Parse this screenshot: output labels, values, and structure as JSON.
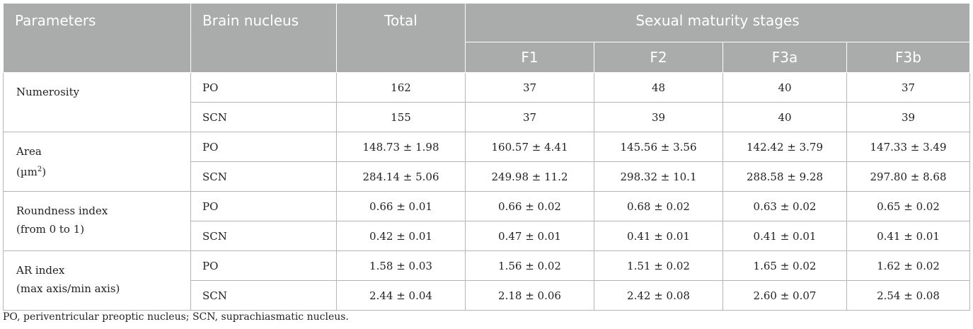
{
  "header": {
    "parameters": "Parameters",
    "brain_nucleus": "Brain nucleus",
    "total": "Total",
    "group": "Sexual maturity stages",
    "stages": [
      "F1",
      "F2",
      "F3a",
      "F3b"
    ]
  },
  "rows": [
    {
      "param_line1": "Numerosity",
      "param_line2": "",
      "sub": [
        {
          "nucleus": "PO",
          "values": [
            "162",
            "37",
            "48",
            "40",
            "37"
          ]
        },
        {
          "nucleus": "SCN",
          "values": [
            "155",
            "37",
            "39",
            "40",
            "39"
          ]
        }
      ]
    },
    {
      "param_line1": "Area",
      "param_line2": "(µm",
      "param_sup": "2",
      "param_line2_end": ")",
      "sub": [
        {
          "nucleus": "PO",
          "values": [
            "148.73 ± 1.98",
            "160.57 ± 4.41",
            "145.56 ± 3.56",
            "142.42 ± 3.79",
            "147.33 ± 3.49"
          ]
        },
        {
          "nucleus": "SCN",
          "values": [
            "284.14 ± 5.06",
            "249.98 ± 11.2",
            "298.32 ± 10.1",
            "288.58 ± 9.28",
            "297.80 ± 8.68"
          ]
        }
      ]
    },
    {
      "param_line1": "Roundness index",
      "param_line2": "(from 0 to 1)",
      "sub": [
        {
          "nucleus": "PO",
          "values": [
            "0.66 ± 0.01",
            "0.66 ± 0.02",
            "0.68 ± 0.02",
            "0.63 ± 0.02",
            "0.65 ± 0.02"
          ]
        },
        {
          "nucleus": "SCN",
          "values": [
            "0.42 ± 0.01",
            "0.47 ± 0.01",
            "0.41 ± 0.01",
            "0.41 ± 0.01",
            "0.41 ± 0.01"
          ]
        }
      ]
    },
    {
      "param_line1": "AR index",
      "param_line2": "(max axis/min axis)",
      "sub": [
        {
          "nucleus": "PO",
          "values": [
            "1.58 ± 0.03",
            "1.56 ± 0.02",
            "1.51 ± 0.02",
            "1.65 ± 0.02",
            "1.62 ± 0.02"
          ]
        },
        {
          "nucleus": "SCN",
          "values": [
            "2.44 ± 0.04",
            "2.18 ± 0.06",
            "2.42 ± 0.08",
            "2.60 ± 0.07",
            "2.54 ± 0.08"
          ]
        }
      ]
    }
  ],
  "footnote": "PO, periventricular preoptic nucleus; SCN, suprachiasmatic nucleus.",
  "colors": {
    "header_bg": "#a9acab",
    "header_text": "#ffffff",
    "grid": "#b5b5b5"
  }
}
